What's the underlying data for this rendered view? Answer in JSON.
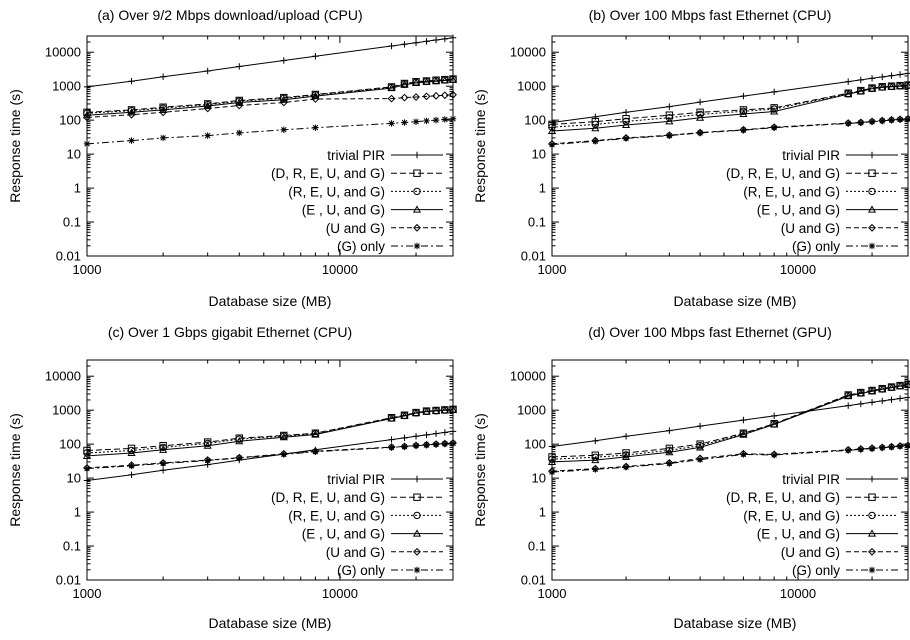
{
  "chart_data": [
    {
      "type": "line",
      "title": "(a) Over 9/2 Mbps download/upload (CPU)",
      "xlabel": "Database size (MB)",
      "ylabel": "Response time (s)",
      "xscale": "log",
      "yscale": "log",
      "xlim": [
        1000,
        28000
      ],
      "ylim": [
        0.01,
        30000
      ],
      "xticks": [
        "1000",
        "10000"
      ],
      "yticks": [
        "0.01",
        "0.1",
        "1",
        "10",
        "100",
        "1000",
        "10000"
      ],
      "legend_position": "bottom-right",
      "grid": false,
      "x": [
        1000,
        1500,
        2000,
        3000,
        4000,
        6000,
        8000,
        16000,
        18000,
        20000,
        22000,
        24000,
        26000,
        28000
      ],
      "series": [
        {
          "name": "trivial PIR",
          "values": [
            950,
            1400,
            1900,
            2800,
            3800,
            5700,
            7600,
            15200,
            17100,
            19000,
            20900,
            22800,
            24700,
            26600
          ]
        },
        {
          "name": "(D, R, E, U, and G)",
          "values": [
            170,
            200,
            240,
            300,
            380,
            460,
            570,
            950,
            1200,
            1350,
            1420,
            1500,
            1560,
            1620
          ]
        },
        {
          "name": "(R, E, U, and G)",
          "values": [
            160,
            190,
            225,
            285,
            360,
            440,
            550,
            920,
            1150,
            1300,
            1380,
            1450,
            1520,
            1580
          ]
        },
        {
          "name": "(E , U, and G)",
          "values": [
            140,
            170,
            200,
            260,
            330,
            400,
            510,
            880,
            1100,
            1250,
            1330,
            1400,
            1470,
            1530
          ]
        },
        {
          "name": "(U and G)",
          "values": [
            120,
            145,
            170,
            220,
            270,
            330,
            420,
            430,
            460,
            480,
            500,
            520,
            540,
            560
          ]
        },
        {
          "name": "(G) only",
          "values": [
            20,
            25,
            30,
            35,
            42,
            52,
            60,
            80,
            85,
            90,
            95,
            100,
            105,
            110
          ]
        }
      ]
    },
    {
      "type": "line",
      "title": "(b) Over 100 Mbps fast Ethernet (CPU)",
      "xlabel": "Database size (MB)",
      "ylabel": "Response time (s)",
      "xscale": "log",
      "yscale": "log",
      "xlim": [
        1000,
        28000
      ],
      "ylim": [
        0.01,
        30000
      ],
      "xticks": [
        "1000",
        "10000"
      ],
      "yticks": [
        "0.01",
        "0.1",
        "1",
        "10",
        "100",
        "1000",
        "10000"
      ],
      "legend_position": "bottom-right",
      "grid": false,
      "x": [
        1000,
        1500,
        2000,
        3000,
        4000,
        6000,
        8000,
        16000,
        18000,
        20000,
        22000,
        24000,
        26000,
        28000
      ],
      "series": [
        {
          "name": "trivial PIR",
          "values": [
            85,
            125,
            170,
            250,
            340,
            510,
            680,
            1360,
            1530,
            1700,
            1870,
            2040,
            2210,
            2380
          ]
        },
        {
          "name": "(D, R, E, U, and G)",
          "values": [
            75,
            90,
            110,
            140,
            170,
            200,
            230,
            620,
            740,
            880,
            960,
            1000,
            1040,
            1080
          ]
        },
        {
          "name": "(R, E, U, and G)",
          "values": [
            62,
            75,
            92,
            118,
            148,
            182,
            212,
            600,
            720,
            860,
            940,
            980,
            1020,
            1060
          ]
        },
        {
          "name": "(E , U, and G)",
          "values": [
            48,
            58,
            72,
            92,
            118,
            152,
            180,
            580,
            700,
            840,
            920,
            960,
            1000,
            1040
          ]
        },
        {
          "name": "(U and G)",
          "values": [
            20,
            25,
            30,
            36,
            43,
            52,
            62,
            82,
            86,
            92,
            97,
            102,
            106,
            110
          ]
        },
        {
          "name": "(G) only",
          "values": [
            19,
            24,
            29,
            35,
            42,
            51,
            60,
            80,
            84,
            90,
            95,
            100,
            104,
            108
          ]
        }
      ]
    },
    {
      "type": "line",
      "title": "(c) Over 1 Gbps gigabit Ethernet (CPU)",
      "xlabel": "Database size (MB)",
      "ylabel": "Response time (s)",
      "xscale": "log",
      "yscale": "log",
      "xlim": [
        1000,
        28000
      ],
      "ylim": [
        0.01,
        30000
      ],
      "xticks": [
        "1000",
        "10000"
      ],
      "yticks": [
        "0.01",
        "0.1",
        "1",
        "10",
        "100",
        "1000",
        "10000"
      ],
      "legend_position": "bottom-right",
      "grid": false,
      "x": [
        1000,
        1500,
        2000,
        3000,
        4000,
        6000,
        8000,
        16000,
        18000,
        20000,
        22000,
        24000,
        26000,
        28000
      ],
      "series": [
        {
          "name": "trivial PIR",
          "values": [
            8.5,
            12.5,
            17,
            25,
            34,
            51,
            68,
            136,
            153,
            170,
            187,
            204,
            221,
            238
          ]
        },
        {
          "name": "(D, R, E, U, and G)",
          "values": [
            65,
            75,
            90,
            115,
            150,
            180,
            210,
            600,
            710,
            850,
            940,
            980,
            1020,
            1060
          ]
        },
        {
          "name": "(R, E, U, and G)",
          "values": [
            55,
            65,
            80,
            105,
            140,
            172,
            202,
            585,
            695,
            835,
            925,
            965,
            1005,
            1045
          ]
        },
        {
          "name": "(E , U, and G)",
          "values": [
            45,
            55,
            68,
            90,
            122,
            160,
            192,
            570,
            680,
            820,
            910,
            950,
            990,
            1030
          ]
        },
        {
          "name": "(U and G)",
          "values": [
            20,
            24,
            28,
            34,
            40,
            52,
            62,
            82,
            86,
            92,
            96,
            100,
            104,
            108
          ]
        },
        {
          "name": "(G) only",
          "values": [
            19,
            23,
            27,
            33,
            39,
            50,
            60,
            80,
            84,
            90,
            94,
            98,
            102,
            106
          ]
        }
      ]
    },
    {
      "type": "line",
      "title": "(d) Over 100 Mbps fast Ethernet (GPU)",
      "xlabel": "Database size (MB)",
      "ylabel": "Response time (s)",
      "xscale": "log",
      "yscale": "log",
      "xlim": [
        1000,
        28000
      ],
      "ylim": [
        0.01,
        30000
      ],
      "xticks": [
        "1000",
        "10000"
      ],
      "yticks": [
        "0.01",
        "0.1",
        "1",
        "10",
        "100",
        "1000",
        "10000"
      ],
      "legend_position": "bottom-right",
      "grid": false,
      "x": [
        1000,
        1500,
        2000,
        3000,
        4000,
        6000,
        8000,
        16000,
        18000,
        20000,
        22000,
        24000,
        26000,
        28000
      ],
      "series": [
        {
          "name": "trivial PIR",
          "values": [
            85,
            125,
            170,
            250,
            340,
            510,
            680,
            1360,
            1530,
            1700,
            1870,
            2040,
            2210,
            2380
          ]
        },
        {
          "name": "(D, R, E, U, and G)",
          "values": [
            42,
            47,
            55,
            75,
            100,
            210,
            400,
            2800,
            3300,
            3800,
            4300,
            4800,
            5300,
            5800
          ]
        },
        {
          "name": "(R, E, U, and G)",
          "values": [
            36,
            41,
            48,
            66,
            90,
            200,
            390,
            2700,
            3200,
            3700,
            4200,
            4700,
            5200,
            5700
          ]
        },
        {
          "name": "(E , U, and G)",
          "values": [
            30,
            34,
            42,
            58,
            80,
            190,
            380,
            2600,
            3100,
            3600,
            4100,
            4600,
            5100,
            5600
          ]
        },
        {
          "name": "(U and G)",
          "values": [
            16,
            19,
            22,
            28,
            38,
            52,
            50,
            68,
            72,
            76,
            80,
            84,
            88,
            92
          ]
        },
        {
          "name": "(G) only",
          "values": [
            15,
            18,
            21,
            27,
            35,
            50,
            48,
            66,
            70,
            74,
            78,
            82,
            86,
            90
          ]
        }
      ]
    }
  ]
}
